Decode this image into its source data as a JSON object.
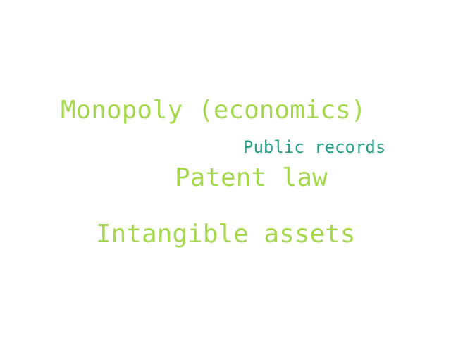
{
  "words": [
    {
      "text": "Monopoly (economics)",
      "color": "#a6d84f"
    },
    {
      "text": "Public records",
      "color": "#2a9f8a"
    },
    {
      "text": "Patent law",
      "color": "#a6d84f"
    },
    {
      "text": "Intangible assets",
      "color": "#a6d84f"
    }
  ]
}
